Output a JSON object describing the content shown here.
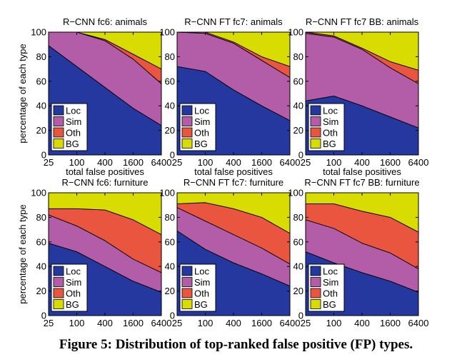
{
  "caption": "Figure 5: Distribution of top-ranked false positive (FP) types.",
  "colors": {
    "Loc": "#2538a0",
    "Sim": "#b35ca8",
    "Oth": "#e9553f",
    "BG": "#d9dc00"
  },
  "chart_data": [
    {
      "type": "area",
      "title": "R−CNN fc6: animals",
      "x": [
        "25",
        "100",
        "400",
        "1600",
        "6400"
      ],
      "xlabel": "total false positives",
      "ylabel": "percentage of each type",
      "ylim": [
        0,
        100
      ],
      "yticks": [
        0,
        20,
        40,
        60,
        80,
        100
      ],
      "legend": [
        "Loc",
        "Sim",
        "Oth",
        "BG"
      ],
      "cumulative": {
        "Loc": [
          89,
          72,
          55,
          38,
          24
        ],
        "Sim": [
          100,
          100,
          93,
          78,
          58
        ],
        "Oth": [
          100,
          100,
          94,
          82,
          70
        ]
      }
    },
    {
      "type": "area",
      "title": "R−CNN FT fc7: animals",
      "x": [
        "25",
        "100",
        "400",
        "1600",
        "6400"
      ],
      "xlabel": "total false positives",
      "ylabel": "percentage of each type",
      "ylim": [
        0,
        100
      ],
      "yticks": [
        0,
        20,
        40,
        60,
        80,
        100
      ],
      "legend": [
        "Loc",
        "Sim",
        "Oth",
        "BG"
      ],
      "cumulative": {
        "Loc": [
          72,
          68,
          53,
          40,
          28
        ],
        "Sim": [
          100,
          99,
          91,
          77,
          63
        ],
        "Oth": [
          100,
          100,
          92,
          80,
          72
        ]
      }
    },
    {
      "type": "area",
      "title": "R−CNN FT fc7 BB: animals",
      "x": [
        "25",
        "100",
        "400",
        "1600",
        "6400"
      ],
      "xlabel": "total false positives",
      "ylabel": "percentage of each type",
      "ylim": [
        0,
        100
      ],
      "yticks": [
        0,
        20,
        40,
        60,
        80,
        100
      ],
      "legend": [
        "Loc",
        "Sim",
        "Oth",
        "BG"
      ],
      "cumulative": {
        "Loc": [
          44,
          48,
          40,
          31,
          22
        ],
        "Sim": [
          99,
          96,
          86,
          71,
          58
        ],
        "Oth": [
          100,
          97,
          87,
          76,
          69
        ]
      }
    },
    {
      "type": "area",
      "title": "R−CNN fc6: furniture",
      "x": [
        "25",
        "100",
        "400",
        "1600",
        "6400"
      ],
      "xlabel": "total false positives",
      "ylabel": "percentage of each type",
      "ylim": [
        0,
        100
      ],
      "yticks": [
        0,
        20,
        40,
        60,
        80,
        100
      ],
      "legend": [
        "Loc",
        "Sim",
        "Oth",
        "BG"
      ],
      "cumulative": {
        "Loc": [
          59,
          52,
          40,
          28,
          19
        ],
        "Sim": [
          82,
          73,
          61,
          46,
          35
        ],
        "Oth": [
          87,
          87,
          86,
          78,
          66
        ]
      }
    },
    {
      "type": "area",
      "title": "R−CNN FT fc7: furniture",
      "x": [
        "25",
        "100",
        "400",
        "1600",
        "6400"
      ],
      "xlabel": "total false positives",
      "ylabel": "percentage of each type",
      "ylim": [
        0,
        100
      ],
      "yticks": [
        0,
        20,
        40,
        60,
        80,
        100
      ],
      "legend": [
        "Loc",
        "Sim",
        "Oth",
        "BG"
      ],
      "cumulative": {
        "Loc": [
          69,
          54,
          43,
          34,
          24
        ],
        "Sim": [
          88,
          77,
          66,
          55,
          42
        ],
        "Oth": [
          91,
          92,
          87,
          80,
          67
        ]
      }
    },
    {
      "type": "area",
      "title": "R−CNN FT fc7 BB: furniture",
      "x": [
        "25",
        "100",
        "400",
        "1600",
        "6400"
      ],
      "xlabel": "total false positives",
      "ylabel": "percentage of each type",
      "ylim": [
        0,
        100
      ],
      "yticks": [
        0,
        20,
        40,
        60,
        80,
        100
      ],
      "legend": [
        "Loc",
        "Sim",
        "Oth",
        "BG"
      ],
      "cumulative": {
        "Loc": [
          52,
          43,
          35,
          28,
          19
        ],
        "Sim": [
          78,
          71,
          59,
          51,
          38
        ],
        "Oth": [
          91,
          91,
          85,
          80,
          68
        ]
      }
    }
  ]
}
